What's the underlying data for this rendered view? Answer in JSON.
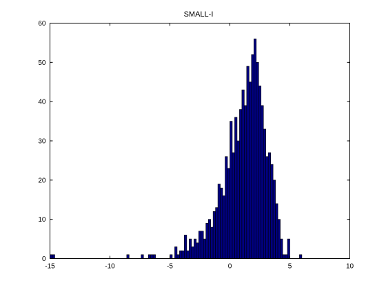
{
  "chart_data": {
    "type": "bar",
    "title": "SMALL-I",
    "xlabel": "",
    "ylabel": "",
    "xlim": [
      -15,
      10
    ],
    "ylim": [
      0,
      60
    ],
    "x_ticks": [
      "-15",
      "-10",
      "-5",
      "0",
      "5",
      "10"
    ],
    "y_ticks": [
      "0",
      "10",
      "20",
      "30",
      "40",
      "50",
      "60"
    ],
    "grid": false,
    "bar_color": "#00007f",
    "edge_color": "#000000",
    "bin_width": 0.2,
    "bins": [
      {
        "x0": -15.0,
        "count": 1
      },
      {
        "x0": -14.8,
        "count": 1
      },
      {
        "x0": -8.6,
        "count": 1
      },
      {
        "x0": -7.4,
        "count": 1
      },
      {
        "x0": -6.8,
        "count": 1
      },
      {
        "x0": -6.6,
        "count": 1
      },
      {
        "x0": -6.4,
        "count": 1
      },
      {
        "x0": -5.0,
        "count": 1
      },
      {
        "x0": -4.6,
        "count": 3
      },
      {
        "x0": -4.4,
        "count": 1
      },
      {
        "x0": -4.2,
        "count": 2
      },
      {
        "x0": -4.0,
        "count": 2
      },
      {
        "x0": -3.8,
        "count": 6
      },
      {
        "x0": -3.6,
        "count": 2
      },
      {
        "x0": -3.4,
        "count": 5
      },
      {
        "x0": -3.2,
        "count": 3
      },
      {
        "x0": -3.0,
        "count": 5
      },
      {
        "x0": -2.8,
        "count": 4
      },
      {
        "x0": -2.6,
        "count": 7
      },
      {
        "x0": -2.4,
        "count": 7
      },
      {
        "x0": -2.2,
        "count": 5
      },
      {
        "x0": -2.0,
        "count": 9
      },
      {
        "x0": -1.8,
        "count": 10
      },
      {
        "x0": -1.6,
        "count": 8
      },
      {
        "x0": -1.4,
        "count": 12
      },
      {
        "x0": -1.2,
        "count": 13
      },
      {
        "x0": -1.0,
        "count": 19
      },
      {
        "x0": -0.8,
        "count": 18
      },
      {
        "x0": -0.6,
        "count": 16
      },
      {
        "x0": -0.4,
        "count": 26
      },
      {
        "x0": -0.2,
        "count": 23
      },
      {
        "x0": 0.0,
        "count": 35
      },
      {
        "x0": 0.2,
        "count": 27
      },
      {
        "x0": 0.4,
        "count": 36
      },
      {
        "x0": 0.6,
        "count": 30
      },
      {
        "x0": 0.8,
        "count": 38
      },
      {
        "x0": 1.0,
        "count": 43
      },
      {
        "x0": 1.2,
        "count": 39
      },
      {
        "x0": 1.4,
        "count": 49
      },
      {
        "x0": 1.6,
        "count": 45
      },
      {
        "x0": 1.8,
        "count": 52
      },
      {
        "x0": 2.0,
        "count": 56
      },
      {
        "x0": 2.2,
        "count": 50
      },
      {
        "x0": 2.4,
        "count": 44
      },
      {
        "x0": 2.6,
        "count": 39
      },
      {
        "x0": 2.8,
        "count": 33
      },
      {
        "x0": 3.0,
        "count": 26
      },
      {
        "x0": 3.2,
        "count": 27
      },
      {
        "x0": 3.4,
        "count": 24
      },
      {
        "x0": 3.6,
        "count": 20
      },
      {
        "x0": 3.8,
        "count": 14
      },
      {
        "x0": 4.0,
        "count": 10
      },
      {
        "x0": 4.2,
        "count": 5
      },
      {
        "x0": 4.4,
        "count": 1
      },
      {
        "x0": 4.6,
        "count": 1
      },
      {
        "x0": 4.8,
        "count": 5
      },
      {
        "x0": 5.8,
        "count": 1
      }
    ]
  }
}
